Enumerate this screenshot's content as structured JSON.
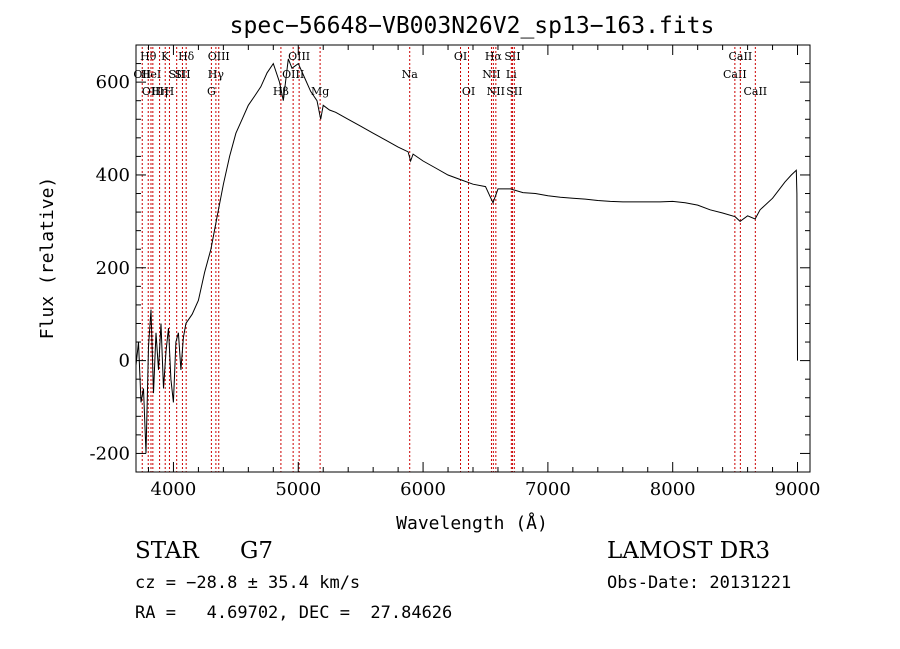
{
  "chart_data": {
    "type": "line",
    "title": "spec−56648−VB003N26V2_sp13−163.fits",
    "xlabel": "Wavelength (Å)",
    "ylabel": "Flux (relative)",
    "xlim": [
      3700,
      9100
    ],
    "ylim": [
      -240,
      680
    ],
    "x_ticks": [
      4000,
      5000,
      6000,
      7000,
      8000,
      9000
    ],
    "y_ticks": [
      -200,
      0,
      200,
      400,
      600
    ],
    "grid": false,
    "line_color": "#000000",
    "marker_color": "#cc0000",
    "series": [
      {
        "values": [
          [
            3700,
            -10
          ],
          [
            3720,
            40
          ],
          [
            3740,
            -90
          ],
          [
            3760,
            -60
          ],
          [
            3780,
            -200
          ],
          [
            3800,
            30
          ],
          [
            3820,
            110
          ],
          [
            3840,
            -70
          ],
          [
            3860,
            60
          ],
          [
            3880,
            -20
          ],
          [
            3900,
            80
          ],
          [
            3920,
            -60
          ],
          [
            3940,
            20
          ],
          [
            3960,
            70
          ],
          [
            3980,
            -40
          ],
          [
            4000,
            -90
          ],
          [
            4020,
            40
          ],
          [
            4040,
            60
          ],
          [
            4060,
            -20
          ],
          [
            4080,
            50
          ],
          [
            4100,
            80
          ],
          [
            4150,
            100
          ],
          [
            4200,
            130
          ],
          [
            4250,
            190
          ],
          [
            4300,
            240
          ],
          [
            4350,
            310
          ],
          [
            4400,
            380
          ],
          [
            4450,
            440
          ],
          [
            4500,
            490
          ],
          [
            4550,
            520
          ],
          [
            4600,
            550
          ],
          [
            4650,
            570
          ],
          [
            4700,
            590
          ],
          [
            4750,
            620
          ],
          [
            4800,
            640
          ],
          [
            4850,
            600
          ],
          [
            4880,
            560
          ],
          [
            4920,
            650
          ],
          [
            4950,
            630
          ],
          [
            5000,
            640
          ],
          [
            5050,
            610
          ],
          [
            5100,
            580
          ],
          [
            5150,
            560
          ],
          [
            5180,
            520
          ],
          [
            5200,
            550
          ],
          [
            5250,
            540
          ],
          [
            5300,
            535
          ],
          [
            5400,
            520
          ],
          [
            5500,
            505
          ],
          [
            5600,
            490
          ],
          [
            5700,
            475
          ],
          [
            5800,
            460
          ],
          [
            5880,
            450
          ],
          [
            5900,
            430
          ],
          [
            5920,
            445
          ],
          [
            6000,
            430
          ],
          [
            6100,
            415
          ],
          [
            6200,
            400
          ],
          [
            6300,
            390
          ],
          [
            6400,
            380
          ],
          [
            6500,
            375
          ],
          [
            6560,
            340
          ],
          [
            6600,
            370
          ],
          [
            6700,
            370
          ],
          [
            6800,
            362
          ],
          [
            6900,
            360
          ],
          [
            7000,
            355
          ],
          [
            7100,
            352
          ],
          [
            7200,
            350
          ],
          [
            7300,
            348
          ],
          [
            7400,
            345
          ],
          [
            7500,
            343
          ],
          [
            7600,
            342
          ],
          [
            7700,
            342
          ],
          [
            7800,
            342
          ],
          [
            7900,
            342
          ],
          [
            8000,
            343
          ],
          [
            8100,
            340
          ],
          [
            8200,
            335
          ],
          [
            8300,
            325
          ],
          [
            8400,
            318
          ],
          [
            8500,
            310
          ],
          [
            8540,
            300
          ],
          [
            8600,
            312
          ],
          [
            8660,
            305
          ],
          [
            8700,
            325
          ],
          [
            8800,
            350
          ],
          [
            8900,
            385
          ],
          [
            8950,
            400
          ],
          [
            8990,
            410
          ],
          [
            8995,
            360
          ],
          [
            9000,
            0
          ]
        ]
      }
    ],
    "line_markers": [
      {
        "x": 3750,
        "label": "OII",
        "row": 2
      },
      {
        "x": 3798,
        "label": "Hθ",
        "row": 1
      },
      {
        "x": 3820,
        "label": "HeI",
        "row": 2
      },
      {
        "x": 3835,
        "label": "OIII",
        "row": 3
      },
      {
        "x": 3889,
        "label": "Hη",
        "row": 3
      },
      {
        "x": 3934,
        "label": "K",
        "row": 1
      },
      {
        "x": 3968,
        "label": "H",
        "row": 3
      },
      {
        "x": 4026,
        "label": "SII",
        "row": 2
      },
      {
        "x": 4072,
        "label": "SII",
        "row": 2
      },
      {
        "x": 4102,
        "label": "Hδ",
        "row": 1
      },
      {
        "x": 4304,
        "label": "G",
        "row": 3
      },
      {
        "x": 4340,
        "label": "Hγ",
        "row": 2
      },
      {
        "x": 4363,
        "label": "OIII",
        "row": 1
      },
      {
        "x": 4861,
        "label": "Hβ",
        "row": 3
      },
      {
        "x": 4959,
        "label": "OIII",
        "row": 2
      },
      {
        "x": 5007,
        "label": "OIII",
        "row": 1
      },
      {
        "x": 5175,
        "label": "Mg",
        "row": 3
      },
      {
        "x": 5893,
        "label": "Na",
        "row": 2
      },
      {
        "x": 6300,
        "label": "OI",
        "row": 1
      },
      {
        "x": 6364,
        "label": "OI",
        "row": 3
      },
      {
        "x": 6548,
        "label": "NII",
        "row": 2
      },
      {
        "x": 6563,
        "label": "Hα",
        "row": 1
      },
      {
        "x": 6583,
        "label": "NII",
        "row": 3
      },
      {
        "x": 6707,
        "label": "Li",
        "row": 2
      },
      {
        "x": 6716,
        "label": "SII",
        "row": 1
      },
      {
        "x": 6731,
        "label": "SII",
        "row": 3
      },
      {
        "x": 8498,
        "label": "CaII",
        "row": 2
      },
      {
        "x": 8542,
        "label": "CaII",
        "row": 1
      },
      {
        "x": 8662,
        "label": "CaII",
        "row": 3
      }
    ]
  },
  "info": {
    "object_class": "STAR",
    "subclass": "G7",
    "survey": "LAMOST DR3",
    "redshift": "cz = −28.8 ± 35.4 km/s",
    "obs_date": "Obs-Date: 20131221",
    "coords": "RA =   4.69702, DEC =  27.84626"
  }
}
